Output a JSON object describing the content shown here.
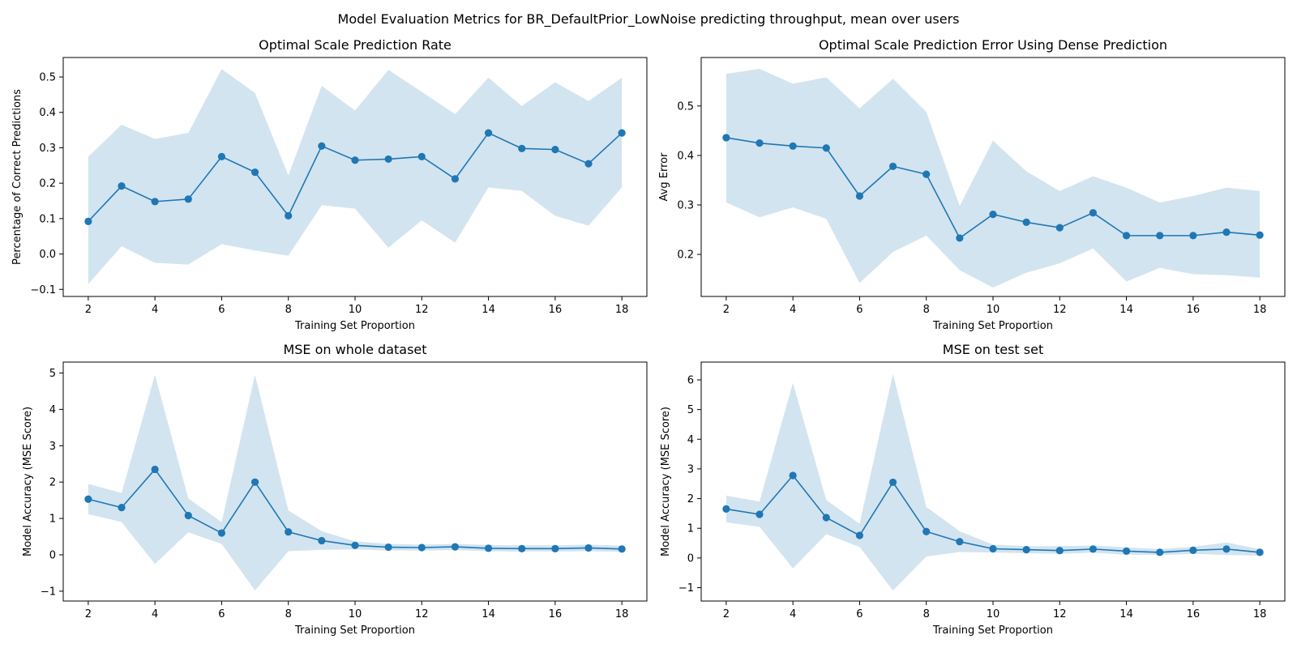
{
  "figure": {
    "suptitle": "Model Evaluation Metrics for BR_DefaultPrior_LowNoise predicting throughput, mean over users"
  },
  "colors": {
    "line": "#1f77b4",
    "band": "#1f77b4",
    "axes": "#000000",
    "background": "#ffffff"
  },
  "chart_data": [
    {
      "type": "line",
      "title": "Optimal Scale Prediction Rate",
      "xlabel": "Training Set Proportion",
      "ylabel": "Percentage of Correct Predictions",
      "xlim": [
        1.25,
        18.75
      ],
      "ylim": [
        -0.12,
        0.555
      ],
      "xticks": [
        2,
        4,
        6,
        8,
        10,
        12,
        14,
        16,
        18
      ],
      "yticks": [
        -0.1,
        0.0,
        0.1,
        0.2,
        0.3,
        0.4,
        0.5
      ],
      "ytick_labels": [
        "−0.1",
        "0.0",
        "0.1",
        "0.2",
        "0.3",
        "0.4",
        "0.5"
      ],
      "grid": false,
      "x": [
        2,
        3,
        4,
        5,
        6,
        7,
        8,
        9,
        10,
        11,
        12,
        13,
        14,
        15,
        16,
        17,
        18
      ],
      "series": [
        {
          "values": [
            0.092,
            0.192,
            0.148,
            0.155,
            0.275,
            0.231,
            0.108,
            0.305,
            0.265,
            0.268,
            0.275,
            0.212,
            0.342,
            0.298,
            0.295,
            0.255,
            0.342
          ],
          "upper": [
            0.275,
            0.365,
            0.325,
            0.342,
            0.522,
            0.455,
            0.222,
            0.475,
            0.405,
            0.52,
            0.458,
            0.395,
            0.498,
            0.418,
            0.485,
            0.432,
            0.498
          ],
          "lower": [
            -0.085,
            0.022,
            -0.025,
            -0.03,
            0.028,
            0.01,
            -0.005,
            0.138,
            0.128,
            0.018,
            0.095,
            0.032,
            0.188,
            0.178,
            0.108,
            0.08,
            0.188
          ]
        }
      ]
    },
    {
      "type": "line",
      "title": "Optimal Scale Prediction Error Using Dense Prediction",
      "xlabel": "Training Set Proportion",
      "ylabel": "Avg Error",
      "xlim": [
        1.25,
        18.75
      ],
      "ylim": [
        0.115,
        0.598
      ],
      "xticks": [
        2,
        4,
        6,
        8,
        10,
        12,
        14,
        16,
        18
      ],
      "yticks": [
        0.2,
        0.3,
        0.4,
        0.5
      ],
      "ytick_labels": [
        "0.2",
        "0.3",
        "0.4",
        "0.5"
      ],
      "grid": false,
      "x": [
        2,
        3,
        4,
        5,
        6,
        7,
        8,
        9,
        10,
        11,
        12,
        13,
        14,
        15,
        16,
        17,
        18
      ],
      "series": [
        {
          "values": [
            0.436,
            0.425,
            0.419,
            0.415,
            0.318,
            0.378,
            0.362,
            0.233,
            0.281,
            0.265,
            0.254,
            0.284,
            0.238,
            0.238,
            0.238,
            0.245,
            0.239
          ],
          "upper": [
            0.565,
            0.575,
            0.545,
            0.558,
            0.495,
            0.555,
            0.488,
            0.298,
            0.43,
            0.368,
            0.328,
            0.358,
            0.335,
            0.305,
            0.318,
            0.335,
            0.328
          ],
          "lower": [
            0.305,
            0.275,
            0.295,
            0.272,
            0.142,
            0.205,
            0.238,
            0.168,
            0.133,
            0.163,
            0.182,
            0.212,
            0.145,
            0.173,
            0.16,
            0.158,
            0.153
          ]
        }
      ]
    },
    {
      "type": "line",
      "title": "MSE on whole dataset",
      "xlabel": "Training Set Proportion",
      "ylabel": "Model Accuracy (MSE Score)",
      "xlim": [
        1.25,
        18.75
      ],
      "ylim": [
        -1.27,
        5.3
      ],
      "xticks": [
        2,
        4,
        6,
        8,
        10,
        12,
        14,
        16,
        18
      ],
      "yticks": [
        -1,
        0,
        1,
        2,
        3,
        4,
        5
      ],
      "ytick_labels": [
        "−1",
        "0",
        "1",
        "2",
        "3",
        "4",
        "5"
      ],
      "grid": false,
      "x": [
        2,
        3,
        4,
        5,
        6,
        7,
        8,
        9,
        10,
        11,
        12,
        13,
        14,
        15,
        16,
        17,
        18
      ],
      "series": [
        {
          "values": [
            1.53,
            1.3,
            2.35,
            1.08,
            0.6,
            2.0,
            0.63,
            0.39,
            0.26,
            0.21,
            0.2,
            0.22,
            0.18,
            0.17,
            0.17,
            0.19,
            0.16
          ],
          "upper": [
            1.95,
            1.7,
            4.95,
            1.55,
            0.9,
            4.95,
            1.22,
            0.65,
            0.37,
            0.3,
            0.28,
            0.3,
            0.27,
            0.26,
            0.26,
            0.28,
            0.25
          ],
          "lower": [
            1.12,
            0.9,
            -0.25,
            0.62,
            0.3,
            -0.98,
            0.1,
            0.14,
            0.15,
            0.12,
            0.12,
            0.13,
            0.1,
            0.09,
            0.09,
            0.1,
            0.08
          ]
        }
      ]
    },
    {
      "type": "line",
      "title": "MSE on test set",
      "xlabel": "Training Set Proportion",
      "ylabel": "Model Accuracy (MSE Score)",
      "xlim": [
        1.25,
        18.75
      ],
      "ylim": [
        -1.45,
        6.6
      ],
      "xticks": [
        2,
        4,
        6,
        8,
        10,
        12,
        14,
        16,
        18
      ],
      "yticks": [
        -1,
        0,
        1,
        2,
        3,
        4,
        5,
        6
      ],
      "ytick_labels": [
        "−1",
        "0",
        "1",
        "2",
        "3",
        "4",
        "5",
        "6"
      ],
      "grid": false,
      "x": [
        2,
        3,
        4,
        5,
        6,
        7,
        8,
        9,
        10,
        11,
        12,
        13,
        14,
        15,
        16,
        17,
        18
      ],
      "series": [
        {
          "values": [
            1.65,
            1.47,
            2.78,
            1.36,
            0.76,
            2.55,
            0.89,
            0.55,
            0.31,
            0.28,
            0.25,
            0.3,
            0.23,
            0.19,
            0.26,
            0.3,
            0.19
          ],
          "upper": [
            2.1,
            1.9,
            5.9,
            1.95,
            1.15,
            6.2,
            1.72,
            0.9,
            0.45,
            0.4,
            0.4,
            0.42,
            0.36,
            0.3,
            0.38,
            0.52,
            0.3
          ],
          "lower": [
            1.2,
            1.05,
            -0.35,
            0.8,
            0.37,
            -1.1,
            0.05,
            0.2,
            0.18,
            0.16,
            0.14,
            0.18,
            0.11,
            0.1,
            0.14,
            0.1,
            0.08
          ]
        }
      ]
    }
  ]
}
